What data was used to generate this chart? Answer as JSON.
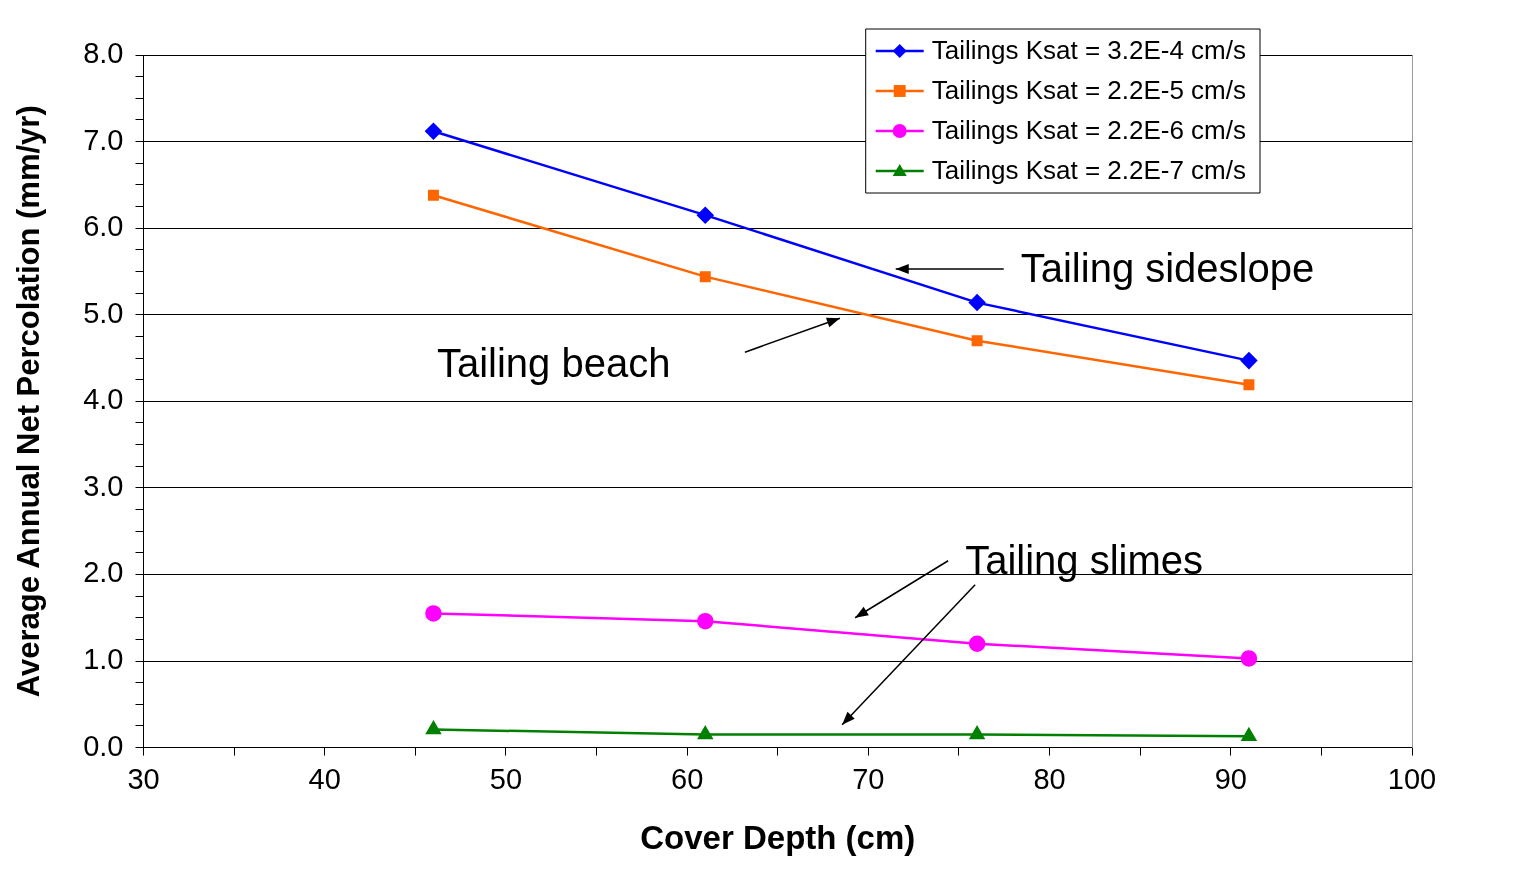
{
  "chart_data": {
    "type": "line",
    "xlabel": "Cover Depth (cm)",
    "ylabel": "Average Annual Net Percolation (mm/yr)",
    "x": [
      46,
      61,
      76,
      91
    ],
    "series": [
      {
        "name": "Tailings Ksat = 3.2E-4 cm/s",
        "color": "#0000ff",
        "marker": "diamond",
        "values": [
          7.12,
          6.15,
          5.14,
          4.47
        ]
      },
      {
        "name": "Tailings Ksat = 2.2E-5 cm/s",
        "color": "#ff6600",
        "marker": "square",
        "values": [
          6.38,
          5.44,
          4.7,
          4.19
        ]
      },
      {
        "name": "Tailings Ksat = 2.2E-6 cm/s",
        "color": "#ff00ff",
        "marker": "circle",
        "values": [
          1.55,
          1.46,
          1.2,
          1.03
        ]
      },
      {
        "name": "Tailings Ksat = 2.2E-7 cm/s",
        "color": "#008000",
        "marker": "triangle",
        "values": [
          0.21,
          0.15,
          0.15,
          0.13
        ]
      }
    ],
    "xlim": [
      30,
      100
    ],
    "xticks": [
      30,
      {
        "value": 35,
        "label": null
      },
      40,
      {
        "value": 45,
        "label": null
      },
      50,
      {
        "value": 55,
        "label": null
      },
      60,
      {
        "value": 65,
        "label": null
      },
      70,
      {
        "value": 75,
        "label": null
      },
      80,
      {
        "value": 85,
        "label": null
      },
      90,
      {
        "value": 95,
        "label": null
      },
      100
    ],
    "ylim": [
      0,
      8
    ],
    "yticks": [
      {
        "value": 0,
        "label": "0.0"
      },
      {
        "value": 0.25,
        "label": null
      },
      {
        "value": 0.5,
        "label": null
      },
      {
        "value": 0.75,
        "label": null
      },
      {
        "value": 1,
        "label": "1.0"
      },
      {
        "value": 1.25,
        "label": null
      },
      {
        "value": 1.5,
        "label": null
      },
      {
        "value": 1.75,
        "label": null
      },
      {
        "value": 2,
        "label": "2.0"
      },
      {
        "value": 2.25,
        "label": null
      },
      {
        "value": 2.5,
        "label": null
      },
      {
        "value": 2.75,
        "label": null
      },
      {
        "value": 3,
        "label": "3.0"
      },
      {
        "value": 3.25,
        "label": null
      },
      {
        "value": 3.5,
        "label": null
      },
      {
        "value": 3.75,
        "label": null
      },
      {
        "value": 4,
        "label": "4.0"
      },
      {
        "value": 4.25,
        "label": null
      },
      {
        "value": 4.5,
        "label": null
      },
      {
        "value": 4.75,
        "label": null
      },
      {
        "value": 5,
        "label": "5.0"
      },
      {
        "value": 5.25,
        "label": null
      },
      {
        "value": 5.5,
        "label": null
      },
      {
        "value": 5.75,
        "label": null
      },
      {
        "value": 6,
        "label": "6.0"
      },
      {
        "value": 6.25,
        "label": null
      },
      {
        "value": 6.5,
        "label": null
      },
      {
        "value": 6.75,
        "label": null
      },
      {
        "value": 7,
        "label": "7.0"
      },
      {
        "value": 7.25,
        "label": null
      },
      {
        "value": 7.5,
        "label": null
      },
      {
        "value": 7.75,
        "label": null
      },
      {
        "value": 8,
        "label": "8.0"
      }
    ],
    "grid": "y",
    "legend": "top right",
    "line_style": "solid",
    "annotations": [
      "Tailing sideslope",
      "Tailing beach",
      "Tailing slimes"
    ]
  }
}
